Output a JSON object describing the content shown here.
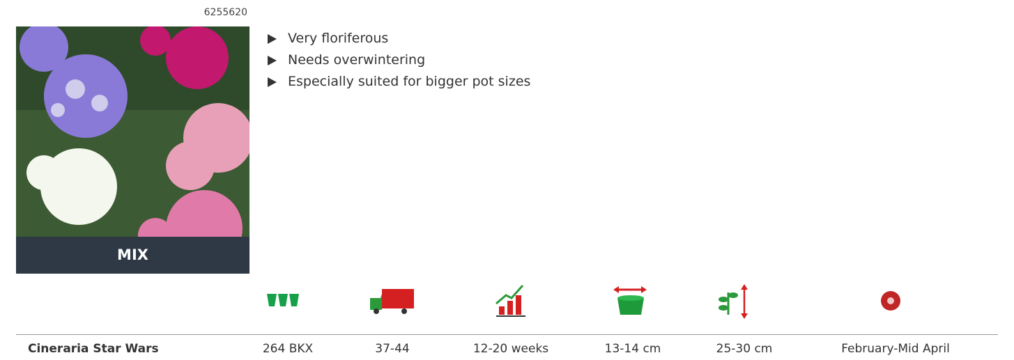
{
  "product": {
    "code": "6255620",
    "image_label": "MIX",
    "features": [
      "Very floriferous",
      "Needs overwintering",
      "Especially suited for bigger pot sizes"
    ]
  },
  "table": {
    "name": "Cineraria Star Wars",
    "values": [
      "264 BKX",
      "37-44",
      "12-20 weeks",
      "13-14 cm",
      "25-30 cm",
      "February-Mid April"
    ]
  }
}
